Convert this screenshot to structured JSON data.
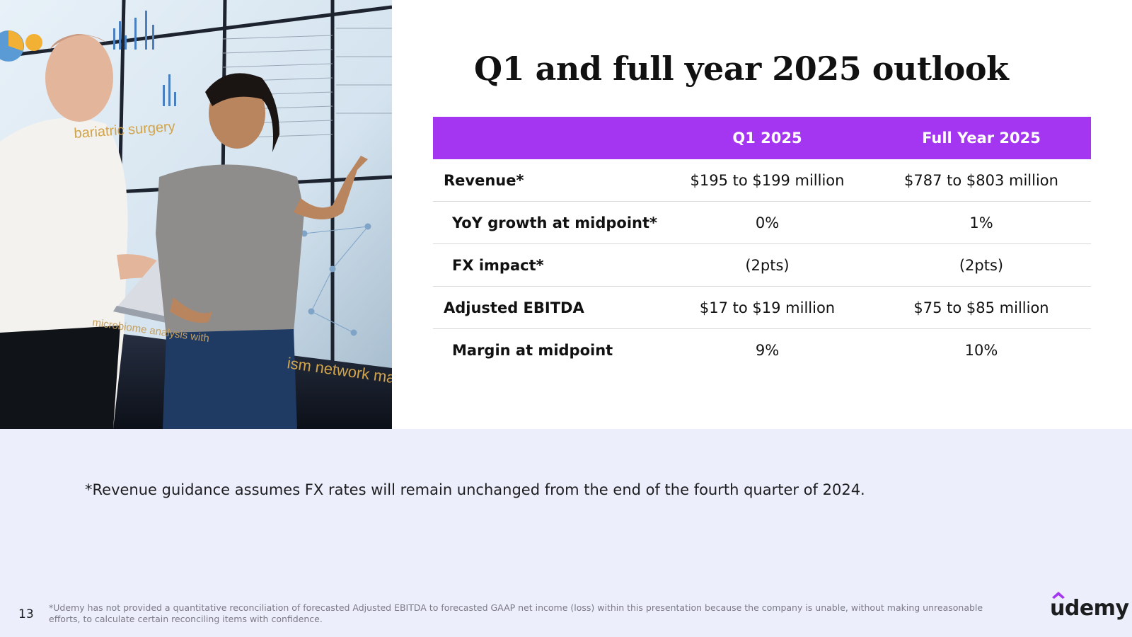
{
  "title": "Q1 and full year 2025 outlook",
  "table": {
    "headers": [
      "",
      "Q1 2025",
      "Full Year 2025"
    ],
    "rows": [
      {
        "label": "Revenue*",
        "sub": false,
        "q1": "$195 to $199 million",
        "fy": "$787 to $803 million"
      },
      {
        "label": "YoY growth at midpoint*",
        "sub": true,
        "q1": "0%",
        "fy": "1%"
      },
      {
        "label": "FX impact*",
        "sub": true,
        "q1": "(2pts)",
        "fy": "(2pts)"
      },
      {
        "label": "Adjusted EBITDA",
        "sub": false,
        "q1": "$17 to $19 million",
        "fy": "$75 to $85 million"
      },
      {
        "label": "Margin at midpoint",
        "sub": true,
        "q1": "9%",
        "fy": "10%"
      }
    ]
  },
  "photo": {
    "screen_texts": [
      "bariatric surgery",
      "microbiome analysis with",
      "ism network maps"
    ]
  },
  "note": "*Revenue guidance assumes FX rates will remain unchanged from the end of the fourth quarter of 2024.",
  "footer": {
    "page_number": "13",
    "disclaimer": "*Udemy has not provided a quantitative reconciliation of forecasted Adjusted EBITDA to forecasted GAAP net income (loss) within this presentation because the company is unable, without making unreasonable efforts, to calculate certain reconciling items with confidence.",
    "logo_text": "udemy"
  },
  "colors": {
    "header_bg": "#a435f0",
    "band_bg": "#eceefb",
    "text": "#1c1d1f",
    "muted": "#7a7a85"
  }
}
